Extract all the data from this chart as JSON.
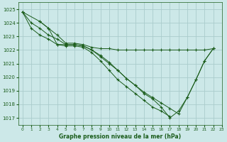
{
  "title": "Graphe pression niveau de la mer (hPa)",
  "bg_color": "#cce8e8",
  "grid_color": "#aacccc",
  "line_color": "#1a5c1a",
  "marker": "+",
  "xlim": [
    -0.5,
    23
  ],
  "ylim": [
    1016.5,
    1025.5
  ],
  "yticks": [
    1017,
    1018,
    1019,
    1020,
    1021,
    1022,
    1023,
    1024,
    1025
  ],
  "xticks": [
    0,
    1,
    2,
    3,
    4,
    5,
    6,
    7,
    8,
    9,
    10,
    11,
    12,
    13,
    14,
    15,
    16,
    17,
    18,
    19,
    20,
    21,
    22,
    23
  ],
  "series": [
    [
      1024.8,
      null,
      1024.1,
      1023.6,
      1023.1,
      1022.5,
      1022.5,
      1022.4,
      1022.2,
      1022.1,
      1022.1,
      1022.0,
      1022.0,
      1022.0,
      1022.0,
      1022.0,
      1022.0,
      1022.0,
      1022.0,
      1022.0,
      1022.0,
      1022.0,
      1022.1,
      null
    ],
    [
      1024.8,
      1024.0,
      1023.6,
      1023.1,
      1022.8,
      1022.4,
      1022.4,
      1022.3,
      1022.0,
      1021.5,
      1021.0,
      1020.5,
      1019.9,
      1019.4,
      1018.9,
      1018.5,
      1018.1,
      1017.7,
      1017.3,
      1018.5,
      1019.8,
      1021.2,
      1022.1,
      null
    ],
    [
      1024.8,
      1023.6,
      1023.1,
      1022.8,
      1022.4,
      1022.3,
      1022.3,
      1022.2,
      1021.8,
      1021.2,
      1020.5,
      1019.8,
      1019.3,
      1018.8,
      1018.3,
      1017.8,
      1017.5,
      1017.1,
      null,
      null,
      null,
      null,
      null,
      null
    ],
    [
      null,
      null,
      1024.1,
      1023.6,
      1022.4,
      1022.4,
      1022.4,
      1022.3,
      1022.0,
      1021.6,
      1021.1,
      1020.5,
      1019.9,
      1019.4,
      1018.8,
      1018.4,
      1017.8,
      1017.0,
      1017.5,
      1018.5,
      1019.8,
      1021.2,
      1022.1,
      null
    ]
  ]
}
